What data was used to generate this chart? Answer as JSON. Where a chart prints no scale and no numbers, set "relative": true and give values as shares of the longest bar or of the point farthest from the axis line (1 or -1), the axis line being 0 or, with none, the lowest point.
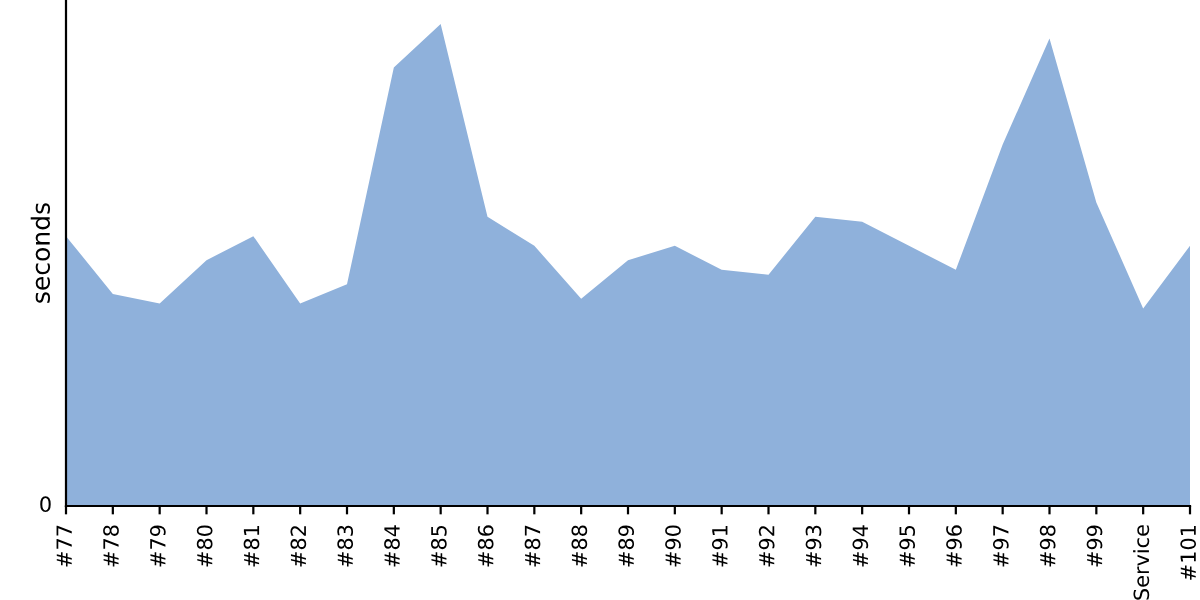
{
  "chart_data": {
    "type": "area",
    "ylabel": "seconds",
    "relative": true,
    "annotations": [
      "0"
    ],
    "color": "#8fb1db",
    "grid": false,
    "legend": false,
    "categories": [
      "#77",
      "#78",
      "#79",
      "#80",
      "#81",
      "#82",
      "#83",
      "#84",
      "#85",
      "#86",
      "#87",
      "#88",
      "#89",
      "#90",
      "#91",
      "#92",
      "#93",
      "#94",
      "#95",
      "#96",
      "#97",
      "#98",
      "#99",
      "Service",
      "#101"
    ],
    "values": [
      0.56,
      0.44,
      0.42,
      0.51,
      0.56,
      0.42,
      0.46,
      0.91,
      1,
      0.6,
      0.54,
      0.43,
      0.51,
      0.54,
      0.49,
      0.48,
      0.6,
      0.59,
      0.54,
      0.49,
      0.75,
      0.97,
      0.63,
      0.41,
      0.54
    ]
  }
}
